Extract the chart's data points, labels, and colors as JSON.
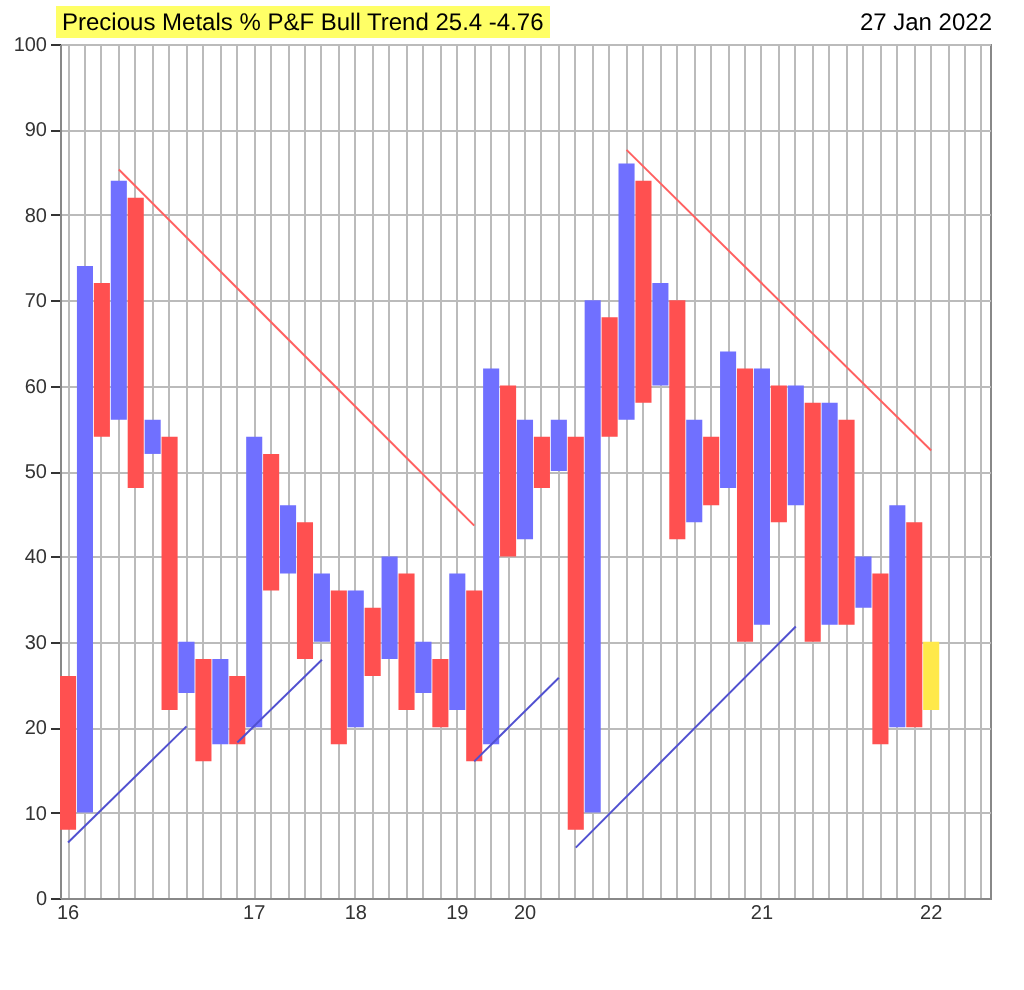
{
  "chart_data": {
    "type": "bar",
    "title": "Precious Metals % P&F Bull Trend 25.4 -4.76",
    "annotations": [
      "27 Jan 2022"
    ],
    "categories": [
      "16",
      null,
      null,
      null,
      null,
      null,
      null,
      null,
      null,
      null,
      null,
      "17",
      null,
      null,
      null,
      null,
      null,
      "18",
      null,
      null,
      null,
      null,
      null,
      "19",
      null,
      null,
      null,
      "20",
      null,
      null,
      null,
      null,
      null,
      null,
      null,
      null,
      null,
      null,
      null,
      null,
      null,
      "21",
      null,
      null,
      null,
      null,
      null,
      null,
      null,
      null,
      null,
      "22",
      null,
      null,
      null
    ],
    "base": [
      8,
      10,
      54,
      56,
      48,
      52,
      22,
      24,
      16,
      18,
      18,
      20,
      36,
      38,
      28,
      30,
      18,
      20,
      26,
      28,
      22,
      24,
      20,
      22,
      16,
      18,
      40,
      42,
      48,
      50,
      8,
      10,
      54,
      56,
      58,
      60,
      42,
      44,
      46,
      48,
      30,
      32,
      44,
      46,
      30,
      32,
      32,
      34,
      18,
      20,
      20,
      22,
      null,
      null,
      null
    ],
    "values": [
      18,
      64,
      18,
      28,
      34,
      4,
      32,
      6,
      12,
      10,
      8,
      34,
      16,
      8,
      16,
      8,
      18,
      16,
      8,
      12,
      16,
      6,
      8,
      16,
      20,
      44,
      20,
      14,
      6,
      6,
      46,
      60,
      14,
      30,
      26,
      12,
      28,
      12,
      8,
      16,
      32,
      30,
      16,
      14,
      28,
      26,
      24,
      6,
      20,
      26,
      24,
      8,
      null,
      null,
      null
    ],
    "colors": [
      "#ff5050",
      "#7070ff",
      "#ff5050",
      "#7070ff",
      "#ff5050",
      "#7070ff",
      "#ff5050",
      "#7070ff",
      "#ff5050",
      "#7070ff",
      "#ff5050",
      "#7070ff",
      "#ff5050",
      "#7070ff",
      "#ff5050",
      "#7070ff",
      "#ff5050",
      "#7070ff",
      "#ff5050",
      "#7070ff",
      "#ff5050",
      "#7070ff",
      "#ff5050",
      "#7070ff",
      "#ff5050",
      "#7070ff",
      "#ff5050",
      "#7070ff",
      "#ff5050",
      "#7070ff",
      "#ff5050",
      "#7070ff",
      "#ff5050",
      "#7070ff",
      "#ff5050",
      "#7070ff",
      "#ff5050",
      "#7070ff",
      "#ff5050",
      "#7070ff",
      "#ff5050",
      "#7070ff",
      "#ff5050",
      "#7070ff",
      "#ff5050",
      "#7070ff",
      "#ff5050",
      "#7070ff",
      "#ff5050",
      "#7070ff",
      "#ff5050",
      "#ffe94a",
      null,
      null,
      null
    ],
    "series": [
      {
        "type": "line",
        "color": "#ff6060",
        "values": [
          null,
          null,
          null,
          85.3,
          null,
          null,
          null,
          null,
          null,
          null,
          null,
          null,
          null,
          null,
          null,
          null,
          null,
          null,
          null,
          null,
          null,
          null,
          null,
          null,
          43.6,
          null,
          null,
          null,
          null,
          null,
          null,
          null,
          null,
          null,
          null,
          null,
          null,
          null,
          null,
          null,
          null,
          null,
          null,
          null,
          null,
          null,
          null,
          null,
          null,
          null,
          null,
          null,
          null,
          null,
          null
        ]
      },
      {
        "type": "line",
        "color": "#5050d0",
        "values": [
          6.5,
          null,
          null,
          null,
          null,
          null,
          null,
          20.1,
          null,
          null,
          null,
          null,
          null,
          null,
          null,
          null,
          null,
          null,
          null,
          null,
          null,
          null,
          null,
          null,
          null,
          null,
          null,
          null,
          null,
          null,
          null,
          null,
          null,
          null,
          null,
          null,
          null,
          null,
          null,
          null,
          null,
          null,
          null,
          null,
          null,
          null,
          null,
          null,
          null,
          null,
          null,
          null,
          null,
          null,
          null
        ]
      },
      {
        "type": "line",
        "color": "#5050d0",
        "values": [
          null,
          null,
          null,
          null,
          null,
          null,
          null,
          null,
          null,
          null,
          18.2,
          null,
          null,
          null,
          null,
          27.9,
          null,
          null,
          null,
          null,
          null,
          null,
          null,
          null,
          null,
          null,
          null,
          null,
          null,
          null,
          null,
          null,
          null,
          null,
          null,
          null,
          null,
          null,
          null,
          null,
          null,
          null,
          null,
          null,
          null,
          null,
          null,
          null,
          null,
          null,
          null,
          null,
          null,
          null,
          null
        ]
      },
      {
        "type": "line",
        "color": "#5050d0",
        "values": [
          null,
          null,
          null,
          null,
          null,
          null,
          null,
          null,
          null,
          null,
          null,
          null,
          null,
          null,
          null,
          null,
          null,
          null,
          null,
          null,
          null,
          null,
          null,
          null,
          16.0,
          null,
          null,
          null,
          null,
          25.8,
          null,
          null,
          null,
          null,
          null,
          null,
          null,
          null,
          null,
          null,
          null,
          null,
          null,
          null,
          null,
          null,
          null,
          null,
          null,
          null,
          null,
          null,
          null,
          null,
          null
        ]
      },
      {
        "type": "line",
        "color": "#ff6060",
        "values": [
          null,
          null,
          null,
          null,
          null,
          null,
          null,
          null,
          null,
          null,
          null,
          null,
          null,
          null,
          null,
          null,
          null,
          null,
          null,
          null,
          null,
          null,
          null,
          null,
          null,
          null,
          null,
          null,
          null,
          null,
          null,
          null,
          null,
          87.6,
          null,
          null,
          null,
          null,
          null,
          null,
          null,
          null,
          null,
          null,
          null,
          null,
          null,
          null,
          null,
          null,
          null,
          52.4,
          null,
          null,
          null
        ]
      },
      {
        "type": "line",
        "color": "#5050d0",
        "values": [
          null,
          null,
          null,
          null,
          null,
          null,
          null,
          null,
          null,
          null,
          null,
          null,
          null,
          null,
          null,
          null,
          null,
          null,
          null,
          null,
          null,
          null,
          null,
          null,
          null,
          null,
          null,
          null,
          null,
          null,
          5.9,
          null,
          null,
          null,
          null,
          null,
          null,
          null,
          null,
          null,
          null,
          null,
          null,
          31.8,
          null,
          null,
          null,
          null,
          null,
          null,
          null,
          null,
          null,
          null,
          null
        ]
      }
    ],
    "ylim": [
      0,
      100
    ],
    "yticks": [
      0,
      10,
      20,
      30,
      40,
      50,
      60,
      70,
      80,
      90,
      100
    ],
    "grid": true
  }
}
